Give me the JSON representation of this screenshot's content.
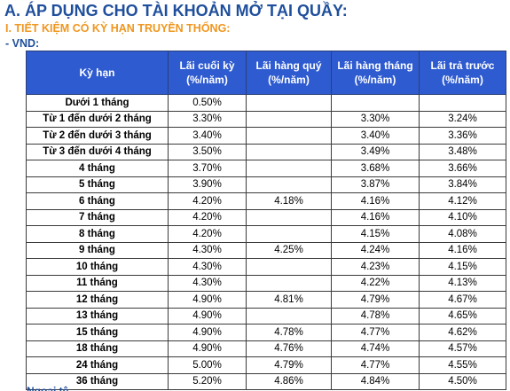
{
  "heading_a": "A. ÁP DỤNG CHO TÀI KHOẢN MỞ TẠI QUẦY:",
  "heading_section": "I. TIẾT KIỆM CÓ KỲ HẠN TRUYỀN THỐNG:",
  "currency_label": "- VND:",
  "table": {
    "columns": [
      "Kỳ hạn",
      "Lãi cuối kỳ\n(%/năm)",
      "Lãi hàng quý\n(%/năm)",
      "Lãi hàng tháng\n(%/năm)",
      "Lãi trả trước\n(%/năm)"
    ],
    "rows": [
      [
        "Dưới 1 tháng",
        "0.50%",
        "",
        "",
        ""
      ],
      [
        "Từ 1 đến dưới 2 tháng",
        "3.30%",
        "",
        "3.30%",
        "3.24%"
      ],
      [
        "Từ 2 đến dưới 3 tháng",
        "3.40%",
        "",
        "3.40%",
        "3.36%"
      ],
      [
        "Từ 3 đến dưới 4 tháng",
        "3.50%",
        "",
        "3.49%",
        "3.48%"
      ],
      [
        "4 tháng",
        "3.70%",
        "",
        "3.68%",
        "3.66%"
      ],
      [
        "5 tháng",
        "3.90%",
        "",
        "3.87%",
        "3.84%"
      ],
      [
        "6 tháng",
        "4.20%",
        "4.18%",
        "4.16%",
        "4.12%"
      ],
      [
        "7 tháng",
        "4.20%",
        "",
        "4.16%",
        "4.10%"
      ],
      [
        "8 tháng",
        "4.20%",
        "",
        "4.15%",
        "4.08%"
      ],
      [
        "9 tháng",
        "4.30%",
        "4.25%",
        "4.24%",
        "4.16%"
      ],
      [
        "10 tháng",
        "4.30%",
        "",
        "4.23%",
        "4.15%"
      ],
      [
        "11 tháng",
        "4.30%",
        "",
        "4.22%",
        "4.13%"
      ],
      [
        "12 tháng",
        "4.90%",
        "4.81%",
        "4.79%",
        "4.67%"
      ],
      [
        "13 tháng",
        "4.90%",
        "",
        "4.78%",
        "4.65%"
      ],
      [
        "15 tháng",
        "4.90%",
        "4.78%",
        "4.77%",
        "4.62%"
      ],
      [
        "18 tháng",
        "4.90%",
        "4.76%",
        "4.74%",
        "4.57%"
      ],
      [
        "24 tháng",
        "5.00%",
        "4.79%",
        "4.77%",
        "4.55%"
      ],
      [
        "36 tháng",
        "5.20%",
        "4.86%",
        "4.84%",
        "4.50%"
      ]
    ]
  },
  "cut_off_text": "Ngoại tệ",
  "colors": {
    "heading": "#1f4f9c",
    "section": "#f0961e",
    "table_header_bg": "#2e5bd0",
    "table_header_text": "#ffffff"
  }
}
